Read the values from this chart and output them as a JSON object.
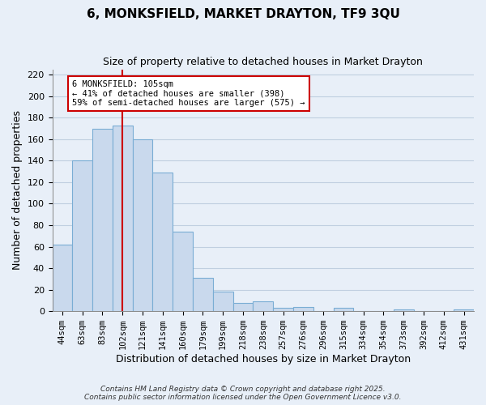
{
  "title": "6, MONKSFIELD, MARKET DRAYTON, TF9 3QU",
  "subtitle": "Size of property relative to detached houses in Market Drayton",
  "xlabel": "Distribution of detached houses by size in Market Drayton",
  "ylabel": "Number of detached properties",
  "bin_labels": [
    "44sqm",
    "63sqm",
    "83sqm",
    "102sqm",
    "121sqm",
    "141sqm",
    "160sqm",
    "179sqm",
    "199sqm",
    "218sqm",
    "238sqm",
    "257sqm",
    "276sqm",
    "296sqm",
    "315sqm",
    "334sqm",
    "354sqm",
    "373sqm",
    "392sqm",
    "412sqm",
    "431sqm"
  ],
  "bar_heights": [
    62,
    140,
    170,
    173,
    160,
    129,
    74,
    31,
    18,
    8,
    9,
    3,
    4,
    0,
    3,
    0,
    0,
    2,
    0,
    0,
    2
  ],
  "bar_color": "#c9d9ed",
  "bar_edgecolor": "#7aadd4",
  "vline_x_index": 3,
  "vline_color": "#cc0000",
  "annotation_text": "6 MONKSFIELD: 105sqm\n← 41% of detached houses are smaller (398)\n59% of semi-detached houses are larger (575) →",
  "annotation_box_edgecolor": "#cc0000",
  "annotation_box_facecolor": "#ffffff",
  "ylim": [
    0,
    225
  ],
  "yticks": [
    0,
    20,
    40,
    60,
    80,
    100,
    120,
    140,
    160,
    180,
    200,
    220
  ],
  "grid_color": "#c0cfe0",
  "background_color": "#e8eff8",
  "footnote1": "Contains HM Land Registry data © Crown copyright and database right 2025.",
  "footnote2": "Contains public sector information licensed under the Open Government Licence v3.0."
}
